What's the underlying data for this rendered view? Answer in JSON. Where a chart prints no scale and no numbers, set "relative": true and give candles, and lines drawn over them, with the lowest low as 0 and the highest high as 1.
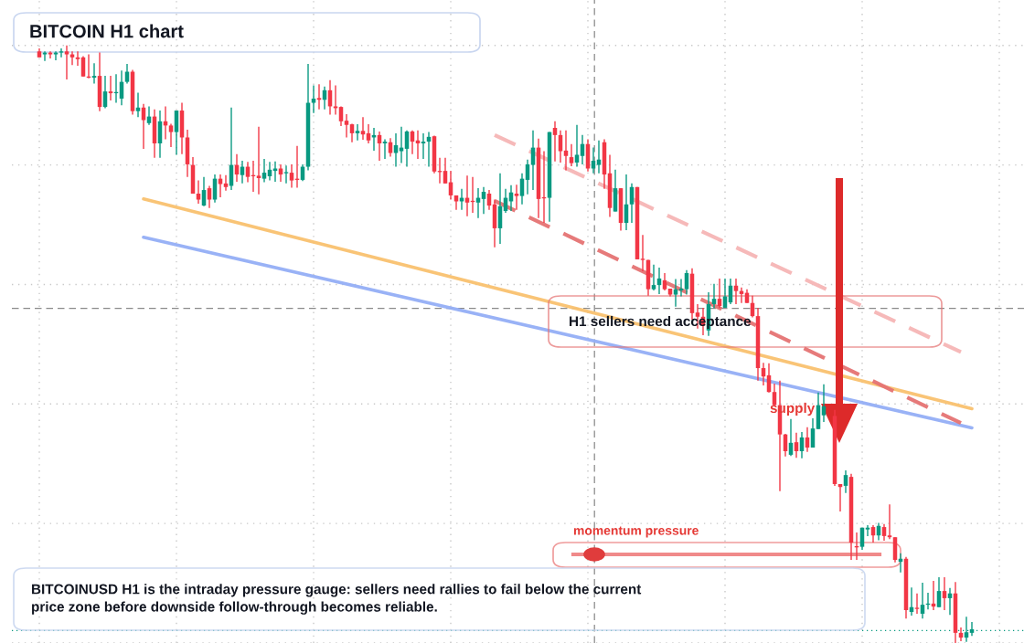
{
  "chart_data": {
    "type": "candlestick",
    "title": "BITCOIN H1 chart",
    "relative": true,
    "grid": true,
    "legend": false,
    "categories": [
      null,
      null,
      null,
      null,
      null,
      null,
      null,
      null,
      null,
      null,
      null,
      null,
      null,
      null,
      null,
      null,
      null,
      null,
      null,
      null,
      null,
      null,
      null,
      null,
      null,
      null,
      null,
      null,
      null,
      null,
      null,
      null,
      null,
      null,
      null,
      null,
      null,
      null,
      null,
      null,
      null,
      null,
      null,
      null,
      null,
      null,
      null,
      null,
      null,
      null,
      null,
      null,
      null,
      null,
      null,
      null,
      null,
      null,
      null,
      null,
      null,
      null,
      null,
      null,
      null,
      null,
      null,
      null,
      null,
      null,
      null,
      null,
      null,
      null,
      null,
      null,
      null,
      null,
      null,
      null,
      null,
      null,
      null,
      null,
      null,
      null,
      null,
      null,
      null,
      null,
      null,
      null,
      null,
      null,
      null,
      null,
      null,
      null,
      null,
      null,
      null,
      null,
      null,
      null,
      null,
      null,
      null,
      null,
      null,
      null,
      null,
      null,
      null,
      null,
      null,
      null,
      null,
      null,
      null,
      null,
      null,
      null,
      null,
      null,
      null,
      null,
      null,
      null,
      null,
      null,
      null,
      null,
      null,
      null,
      null,
      null,
      null,
      null,
      null,
      null,
      null,
      null,
      null,
      null,
      null,
      null,
      null,
      null,
      null,
      null,
      null,
      null,
      null,
      null,
      null,
      null,
      null,
      null,
      null,
      null,
      null,
      null,
      null,
      null,
      null,
      null,
      null,
      null,
      null,
      null,
      null
    ],
    "ohlc": [
      [
        0.99,
        0.995,
        0.98,
        0.98
      ],
      [
        0.985,
        0.99,
        0.974,
        0.988
      ],
      [
        0.988,
        0.99,
        0.978,
        0.985
      ],
      [
        0.985,
        0.99,
        0.975,
        0.988
      ],
      [
        0.988,
        0.995,
        0.98,
        0.99
      ],
      [
        0.99,
        1.0,
        0.943,
        0.985
      ],
      [
        0.985,
        0.99,
        0.967,
        0.98
      ],
      [
        0.98,
        0.99,
        0.966,
        0.977
      ],
      [
        0.98,
        0.982,
        0.948,
        0.948
      ],
      [
        0.948,
        0.985,
        0.945,
        0.946
      ],
      [
        0.946,
        0.97,
        0.936,
        0.949
      ],
      [
        0.949,
        0.988,
        0.89,
        0.897
      ],
      [
        0.897,
        0.949,
        0.895,
        0.923
      ],
      [
        0.923,
        0.949,
        0.908,
        0.92
      ],
      [
        0.92,
        0.952,
        0.904,
        0.922
      ],
      [
        0.911,
        0.958,
        0.9,
        0.939
      ],
      [
        0.939,
        0.969,
        0.936,
        0.956
      ],
      [
        0.956,
        0.959,
        0.884,
        0.89
      ],
      [
        0.89,
        0.921,
        0.88,
        0.896
      ],
      [
        0.896,
        0.902,
        0.827,
        0.875
      ],
      [
        0.87,
        0.898,
        0.867,
        0.881
      ],
      [
        0.881,
        0.893,
        0.812,
        0.836
      ],
      [
        0.836,
        0.891,
        0.812,
        0.873
      ],
      [
        0.873,
        0.898,
        0.843,
        0.866
      ],
      [
        0.866,
        0.869,
        0.83,
        0.855
      ],
      [
        0.855,
        0.891,
        0.817,
        0.891
      ],
      [
        0.891,
        0.904,
        0.818,
        0.846
      ],
      [
        0.846,
        0.859,
        0.78,
        0.801
      ],
      [
        0.8,
        0.813,
        0.752,
        0.752
      ],
      [
        0.752,
        0.774,
        0.735,
        0.742
      ],
      [
        0.732,
        0.78,
        0.731,
        0.758
      ],
      [
        0.761,
        0.765,
        0.728,
        0.742
      ],
      [
        0.742,
        0.784,
        0.737,
        0.777
      ],
      [
        0.777,
        0.784,
        0.746,
        0.768
      ],
      [
        0.769,
        0.783,
        0.757,
        0.763
      ],
      [
        0.765,
        0.896,
        0.758,
        0.8
      ],
      [
        0.8,
        0.818,
        0.772,
        0.784
      ],
      [
        0.783,
        0.807,
        0.769,
        0.797
      ],
      [
        0.797,
        0.805,
        0.771,
        0.78
      ],
      [
        0.783,
        0.807,
        0.755,
        0.781
      ],
      [
        0.782,
        0.864,
        0.751,
        0.778
      ],
      [
        0.777,
        0.81,
        0.771,
        0.787
      ],
      [
        0.781,
        0.805,
        0.774,
        0.792
      ],
      [
        0.79,
        0.806,
        0.772,
        0.794
      ],
      [
        0.794,
        0.801,
        0.772,
        0.784
      ],
      [
        0.786,
        0.799,
        0.769,
        0.788
      ],
      [
        0.787,
        0.801,
        0.762,
        0.774
      ],
      [
        0.776,
        0.832,
        0.762,
        0.775
      ],
      [
        0.775,
        0.801,
        0.773,
        0.797
      ],
      [
        0.797,
        0.969,
        0.791,
        0.904
      ],
      [
        0.904,
        0.933,
        0.887,
        0.911
      ],
      [
        0.912,
        0.935,
        0.893,
        0.909
      ],
      [
        0.909,
        0.931,
        0.893,
        0.925
      ],
      [
        0.925,
        0.942,
        0.884,
        0.898
      ],
      [
        0.898,
        0.933,
        0.884,
        0.895
      ],
      [
        0.897,
        0.898,
        0.865,
        0.873
      ],
      [
        0.874,
        0.885,
        0.846,
        0.867
      ],
      [
        0.868,
        0.869,
        0.838,
        0.853
      ],
      [
        0.853,
        0.868,
        0.841,
        0.857
      ],
      [
        0.857,
        0.88,
        0.842,
        0.851
      ],
      [
        0.853,
        0.868,
        0.836,
        0.841
      ],
      [
        0.846,
        0.862,
        0.824,
        0.85
      ],
      [
        0.85,
        0.856,
        0.807,
        0.836
      ],
      [
        0.836,
        0.843,
        0.81,
        0.839
      ],
      [
        0.838,
        0.845,
        0.814,
        0.82
      ],
      [
        0.82,
        0.853,
        0.797,
        0.833
      ],
      [
        0.823,
        0.864,
        0.803,
        0.829
      ],
      [
        0.827,
        0.858,
        0.797,
        0.856
      ],
      [
        0.856,
        0.858,
        0.818,
        0.839
      ],
      [
        0.841,
        0.858,
        0.81,
        0.836
      ],
      [
        0.836,
        0.853,
        0.81,
        0.839
      ],
      [
        0.839,
        0.855,
        0.797,
        0.847
      ],
      [
        0.848,
        0.849,
        0.786,
        0.789
      ],
      [
        0.79,
        0.812,
        0.769,
        0.788
      ],
      [
        0.79,
        0.812,
        0.769,
        0.769
      ],
      [
        0.771,
        0.79,
        0.742,
        0.749
      ],
      [
        0.749,
        0.749,
        0.725,
        0.739
      ],
      [
        0.739,
        0.76,
        0.725,
        0.745
      ],
      [
        0.745,
        0.782,
        0.714,
        0.737
      ],
      [
        0.74,
        0.78,
        0.72,
        0.738
      ],
      [
        0.737,
        0.761,
        0.711,
        0.745
      ],
      [
        0.743,
        0.763,
        0.718,
        0.755
      ],
      [
        0.752,
        0.758,
        0.725,
        0.732
      ],
      [
        0.734,
        0.742,
        0.662,
        0.694
      ],
      [
        0.694,
        0.786,
        0.668,
        0.731
      ],
      [
        0.723,
        0.76,
        0.72,
        0.745
      ],
      [
        0.739,
        0.766,
        0.723,
        0.754
      ],
      [
        0.752,
        0.767,
        0.725,
        0.748
      ],
      [
        0.748,
        0.786,
        0.734,
        0.777
      ],
      [
        0.775,
        0.809,
        0.751,
        0.801
      ],
      [
        0.8,
        0.858,
        0.758,
        0.829
      ],
      [
        0.829,
        0.844,
        0.711,
        0.743
      ],
      [
        0.745,
        0.823,
        0.703,
        0.744
      ],
      [
        0.745,
        0.855,
        0.705,
        0.855
      ],
      [
        0.862,
        0.873,
        0.806,
        0.85
      ],
      [
        0.85,
        0.858,
        0.804,
        0.823
      ],
      [
        0.824,
        0.858,
        0.791,
        0.815
      ],
      [
        0.813,
        0.835,
        0.798,
        0.803
      ],
      [
        0.804,
        0.867,
        0.797,
        0.817
      ],
      [
        0.815,
        0.85,
        0.801,
        0.835
      ],
      [
        0.835,
        0.843,
        0.789,
        0.794
      ],
      [
        0.794,
        0.829,
        0.786,
        0.807
      ],
      [
        0.8,
        0.841,
        0.786,
        0.809
      ],
      [
        0.838,
        0.843,
        0.76,
        0.784
      ],
      [
        0.786,
        0.817,
        0.713,
        0.728
      ],
      [
        0.722,
        0.792,
        0.722,
        0.761
      ],
      [
        0.761,
        0.761,
        0.69,
        0.703
      ],
      [
        0.703,
        0.784,
        0.691,
        0.734
      ],
      [
        0.734,
        0.769,
        0.703,
        0.763
      ],
      [
        0.763,
        0.763,
        0.642,
        0.642
      ],
      [
        0.643,
        0.683,
        0.622,
        0.641
      ],
      [
        0.641,
        0.641,
        0.581,
        0.592
      ],
      [
        0.592,
        0.633,
        0.59,
        0.599
      ],
      [
        0.599,
        0.628,
        0.584,
        0.61
      ],
      [
        0.607,
        0.619,
        0.59,
        0.592
      ],
      [
        0.593,
        0.593,
        0.58,
        0.583
      ],
      [
        0.583,
        0.609,
        0.563,
        0.592
      ],
      [
        0.59,
        0.609,
        0.58,
        0.593
      ],
      [
        0.592,
        0.624,
        0.583,
        0.619
      ],
      [
        0.618,
        0.627,
        0.541,
        0.552
      ],
      [
        0.553,
        0.567,
        0.526,
        0.546
      ],
      [
        0.546,
        0.561,
        0.515,
        0.531
      ],
      [
        0.523,
        0.587,
        0.514,
        0.567
      ],
      [
        0.567,
        0.601,
        0.56,
        0.576
      ],
      [
        0.576,
        0.61,
        0.56,
        0.564
      ],
      [
        0.561,
        0.61,
        0.561,
        0.58
      ],
      [
        0.57,
        0.61,
        0.567,
        0.598
      ],
      [
        0.598,
        0.61,
        0.567,
        0.589
      ],
      [
        0.589,
        0.595,
        0.569,
        0.584
      ],
      [
        0.586,
        0.592,
        0.569,
        0.569
      ],
      [
        0.569,
        0.581,
        0.545,
        0.547
      ],
      [
        0.547,
        0.561,
        0.439,
        0.46
      ],
      [
        0.46,
        0.469,
        0.431,
        0.446
      ],
      [
        0.448,
        0.468,
        0.419,
        0.42
      ],
      [
        0.42,
        0.434,
        0.396,
        0.398
      ],
      [
        0.398,
        0.439,
        0.254,
        0.349
      ],
      [
        0.349,
        0.35,
        0.312,
        0.321
      ],
      [
        0.315,
        0.375,
        0.313,
        0.335
      ],
      [
        0.336,
        0.352,
        0.31,
        0.321
      ],
      [
        0.321,
        0.353,
        0.309,
        0.344
      ],
      [
        0.344,
        0.361,
        0.32,
        0.327
      ],
      [
        0.327,
        0.376,
        0.327,
        0.359
      ],
      [
        0.358,
        0.419,
        0.358,
        0.398
      ],
      [
        0.381,
        0.433,
        0.37,
        0.396
      ],
      null,
      [
        0.38,
        0.39,
        0.263,
        0.266
      ],
      [
        0.266,
        0.266,
        0.22,
        0.261
      ],
      [
        0.263,
        0.289,
        0.251,
        0.281
      ],
      [
        0.278,
        0.283,
        0.139,
        0.168
      ],
      [
        0.162,
        0.185,
        0.139,
        0.16
      ],
      [
        0.161,
        0.193,
        0.156,
        0.193
      ],
      [
        0.19,
        0.197,
        0.179,
        0.193
      ],
      [
        0.194,
        0.197,
        0.168,
        0.18
      ],
      [
        0.18,
        0.201,
        0.172,
        0.196
      ],
      [
        0.194,
        0.199,
        0.171,
        0.179
      ],
      [
        0.18,
        0.232,
        0.174,
        0.177
      ],
      [
        0.177,
        0.177,
        0.135,
        0.139
      ],
      [
        0.136,
        0.15,
        0.118,
        0.141
      ],
      [
        0.141,
        0.144,
        0.041,
        0.055
      ],
      [
        0.052,
        0.093,
        0.046,
        0.06
      ],
      [
        0.059,
        0.083,
        0.049,
        0.057
      ],
      [
        0.049,
        0.101,
        0.041,
        0.064
      ],
      [
        0.064,
        0.084,
        0.056,
        0.066
      ],
      [
        0.066,
        0.104,
        0.055,
        0.061
      ],
      [
        0.06,
        0.11,
        0.06,
        0.087
      ],
      [
        0.087,
        0.11,
        0.055,
        0.075
      ],
      [
        0.075,
        0.092,
        0.047,
        0.083
      ],
      [
        0.083,
        0.102,
        0.0,
        0.017
      ],
      [
        0.017,
        0.026,
        0.003,
        0.009
      ],
      [
        0.009,
        0.044,
        0.002,
        0.018
      ],
      [
        0.017,
        0.035,
        0.012,
        0.023
      ]
    ],
    "series": [
      {
        "type": "line",
        "color": "#f9c16f",
        "line_style": "solid",
        "values": [
          null,
          null,
          null,
          null,
          null,
          null,
          null,
          null,
          null,
          null,
          null,
          null,
          null,
          null,
          null,
          null,
          null,
          null,
          null,
          0.743,
          null,
          null,
          null,
          null,
          null,
          null,
          null,
          null,
          null,
          null,
          null,
          null,
          null,
          null,
          null,
          null,
          null,
          null,
          null,
          null,
          null,
          null,
          null,
          null,
          null,
          null,
          null,
          null,
          null,
          null,
          null,
          null,
          null,
          null,
          null,
          null,
          null,
          null,
          null,
          null,
          null,
          null,
          null,
          null,
          null,
          null,
          null,
          null,
          null,
          null,
          null,
          null,
          null,
          null,
          null,
          null,
          null,
          null,
          null,
          null,
          null,
          null,
          null,
          null,
          null,
          null,
          null,
          null,
          null,
          null,
          null,
          null,
          null,
          null,
          null,
          null,
          null,
          null,
          null,
          null,
          null,
          null,
          null,
          null,
          null,
          null,
          null,
          null,
          null,
          null,
          null,
          null,
          null,
          null,
          null,
          null,
          null,
          null,
          null,
          null,
          null,
          null,
          null,
          null,
          null,
          null,
          null,
          null,
          null,
          null,
          null,
          null,
          null,
          null,
          null,
          null,
          null,
          null,
          null,
          null,
          null,
          null,
          null,
          null,
          null,
          null,
          null,
          null,
          null,
          null,
          null,
          null,
          null,
          null,
          null,
          null,
          null,
          null,
          null,
          null,
          null,
          null,
          null,
          null,
          null,
          null,
          null,
          null,
          null,
          null,
          0.392
        ]
      },
      {
        "type": "line",
        "color": "#93aef5",
        "line_style": "solid",
        "values": [
          null,
          null,
          null,
          null,
          null,
          null,
          null,
          null,
          null,
          null,
          null,
          null,
          null,
          null,
          null,
          null,
          null,
          null,
          null,
          0.679,
          null,
          null,
          null,
          null,
          null,
          null,
          null,
          null,
          null,
          null,
          null,
          null,
          null,
          null,
          null,
          null,
          null,
          null,
          null,
          null,
          null,
          null,
          null,
          null,
          null,
          null,
          null,
          null,
          null,
          null,
          null,
          null,
          null,
          null,
          null,
          null,
          null,
          null,
          null,
          null,
          null,
          null,
          null,
          null,
          null,
          null,
          null,
          null,
          null,
          null,
          null,
          null,
          null,
          null,
          null,
          null,
          null,
          null,
          null,
          null,
          null,
          null,
          null,
          null,
          null,
          null,
          null,
          null,
          null,
          null,
          null,
          null,
          null,
          null,
          null,
          null,
          null,
          null,
          null,
          null,
          null,
          null,
          null,
          null,
          null,
          null,
          null,
          null,
          null,
          null,
          null,
          null,
          null,
          null,
          null,
          null,
          null,
          null,
          null,
          null,
          null,
          null,
          null,
          null,
          null,
          null,
          null,
          null,
          null,
          null,
          null,
          null,
          null,
          null,
          null,
          null,
          null,
          null,
          null,
          null,
          null,
          null,
          null,
          null,
          null,
          null,
          null,
          null,
          null,
          null,
          null,
          null,
          null,
          null,
          null,
          null,
          null,
          null,
          null,
          null,
          null,
          null,
          null,
          null,
          null,
          null,
          null,
          null,
          null,
          null,
          0.36
        ]
      },
      {
        "type": "line",
        "color": "#f5b5b5",
        "line_style": "dashed",
        "values": [
          null,
          null,
          null,
          null,
          null,
          null,
          null,
          null,
          null,
          null,
          null,
          null,
          null,
          null,
          null,
          null,
          null,
          null,
          null,
          null,
          null,
          null,
          null,
          null,
          null,
          null,
          null,
          null,
          null,
          null,
          null,
          null,
          null,
          null,
          null,
          null,
          null,
          null,
          null,
          null,
          null,
          null,
          null,
          null,
          null,
          null,
          null,
          null,
          null,
          null,
          null,
          null,
          null,
          null,
          null,
          null,
          null,
          null,
          null,
          null,
          null,
          null,
          null,
          null,
          null,
          null,
          null,
          null,
          null,
          null,
          null,
          null,
          null,
          null,
          null,
          null,
          null,
          null,
          null,
          null,
          null,
          null,
          null,
          0.85,
          null,
          null,
          null,
          null,
          null,
          null,
          null,
          null,
          null,
          null,
          null,
          null,
          null,
          null,
          null,
          null,
          null,
          null,
          null,
          null,
          null,
          null,
          null,
          null,
          null,
          null,
          null,
          null,
          null,
          null,
          null,
          null,
          null,
          null,
          null,
          null,
          null,
          null,
          null,
          null,
          null,
          null,
          null,
          null,
          null,
          null,
          null,
          null,
          null,
          null,
          null,
          null,
          null,
          null,
          null,
          null,
          null,
          null,
          null,
          null,
          null,
          null,
          null,
          null,
          null,
          null,
          null,
          null,
          null,
          null,
          null,
          null,
          null,
          null,
          null,
          null,
          null,
          null,
          null,
          null,
          null,
          null,
          null,
          null,
          0.487,
          null,
          null
        ]
      },
      {
        "type": "line",
        "color": "#e57373",
        "line_style": "dashed",
        "values": [
          null,
          null,
          null,
          null,
          null,
          null,
          null,
          null,
          null,
          null,
          null,
          null,
          null,
          null,
          null,
          null,
          null,
          null,
          null,
          null,
          null,
          null,
          null,
          null,
          null,
          null,
          null,
          null,
          null,
          null,
          null,
          null,
          null,
          null,
          null,
          null,
          null,
          null,
          null,
          null,
          null,
          null,
          null,
          null,
          null,
          null,
          null,
          null,
          null,
          null,
          null,
          null,
          null,
          null,
          null,
          null,
          null,
          null,
          null,
          null,
          null,
          null,
          null,
          null,
          null,
          null,
          null,
          null,
          null,
          null,
          null,
          null,
          null,
          null,
          null,
          null,
          null,
          null,
          null,
          null,
          null,
          null,
          null,
          0.74,
          null,
          null,
          null,
          null,
          null,
          null,
          null,
          null,
          null,
          null,
          null,
          null,
          null,
          null,
          null,
          null,
          null,
          null,
          null,
          null,
          null,
          null,
          null,
          null,
          null,
          null,
          null,
          null,
          null,
          null,
          null,
          null,
          null,
          null,
          null,
          null,
          null,
          null,
          null,
          null,
          null,
          null,
          null,
          null,
          null,
          null,
          null,
          null,
          null,
          null,
          null,
          null,
          null,
          null,
          null,
          null,
          null,
          null,
          null,
          null,
          null,
          null,
          null,
          null,
          null,
          null,
          null,
          null,
          null,
          null,
          null,
          null,
          null,
          null,
          null,
          null,
          null,
          null,
          null,
          null,
          null,
          null,
          null,
          null,
          0.368,
          null,
          null
        ]
      }
    ],
    "ref_lines": [
      {
        "axis": "y",
        "value": 0.56,
        "color": "#8a8a8a",
        "line_style": "dashed"
      },
      {
        "axis": "y",
        "value": 0.021,
        "color": "#089981",
        "line_style": "dotted"
      }
    ],
    "annotations": [
      "H1 sellers need acceptance",
      "supply",
      "momentum pressure",
      "BITCOINUSD H1 is the intraday pressure gauge: sellers need rallies to fail below the current\nprice zone before downside follow-through becomes reliable."
    ]
  }
}
